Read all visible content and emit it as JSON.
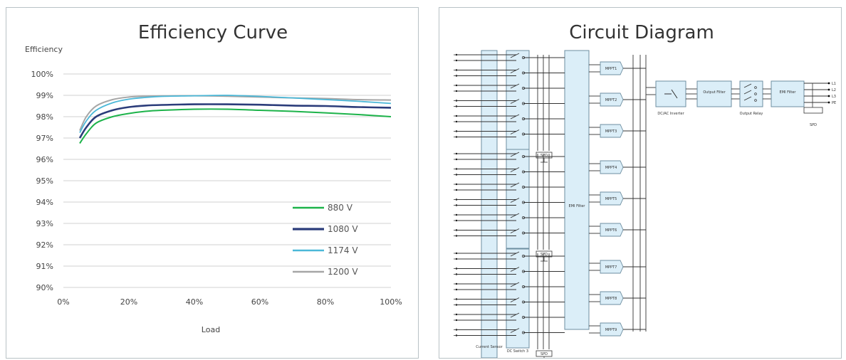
{
  "chart_data": {
    "type": "line",
    "title": "Efficiency Curve",
    "xlabel": "Load",
    "ylabel": "Efficiency",
    "x_ticks": [
      "0%",
      "20%",
      "40%",
      "60%",
      "80%",
      "100%"
    ],
    "y_ticks": [
      "90%",
      "91%",
      "92%",
      "93%",
      "94%",
      "95%",
      "96%",
      "97%",
      "98%",
      "99%",
      "100%"
    ],
    "xlim": [
      0,
      100
    ],
    "ylim": [
      90,
      100
    ],
    "grid": "horizontal",
    "legend_position": "right",
    "x": [
      5,
      7,
      10,
      15,
      20,
      25,
      30,
      40,
      50,
      60,
      70,
      80,
      90,
      100
    ],
    "series": [
      {
        "name": "880 V",
        "color": "#1db34a",
        "values": [
          96.75,
          97.2,
          97.7,
          98.0,
          98.15,
          98.25,
          98.3,
          98.35,
          98.35,
          98.3,
          98.25,
          98.18,
          98.1,
          98.0
        ]
      },
      {
        "name": "1080 V",
        "color": "#2b3c7a",
        "values": [
          97.0,
          97.5,
          98.0,
          98.3,
          98.45,
          98.52,
          98.55,
          98.58,
          98.58,
          98.56,
          98.52,
          98.5,
          98.45,
          98.42
        ]
      },
      {
        "name": "1174 V",
        "color": "#4bb8d8",
        "values": [
          97.25,
          97.8,
          98.3,
          98.65,
          98.82,
          98.9,
          98.95,
          98.98,
          99.0,
          98.95,
          98.88,
          98.8,
          98.72,
          98.62
        ]
      },
      {
        "name": "1200 V",
        "color": "#a6a6a6",
        "values": [
          97.35,
          98.0,
          98.5,
          98.8,
          98.92,
          98.96,
          98.97,
          98.98,
          98.96,
          98.92,
          98.88,
          98.85,
          98.8,
          98.78
        ]
      }
    ]
  },
  "diagram": {
    "title": "Circuit Diagram",
    "dc_switches": [
      "DC Switch 1",
      "DC Switch 2",
      "DC Switch 3"
    ],
    "spd_label": "SPD",
    "emi_filter_label": "EMI Filter",
    "mppt_labels": [
      "MPPT1",
      "MPPT2",
      "MPPT3",
      "MPPT4",
      "MPPT5",
      "MPPT6",
      "MPPT7",
      "MPPT8",
      "MPPT9"
    ],
    "inverter_label": "DC/AC Inverter",
    "output_filter_label": "Output Filter",
    "output_relay_label": "Output Relay",
    "emi_out_label": "EMI Filter",
    "spd_out_label": "SPD",
    "current_sensor_label": "Current Sensor",
    "outputs": [
      "L1",
      "L2",
      "L3",
      "PE"
    ],
    "colors": {
      "box_fill": "#dbeef8",
      "box_stroke": "#6d8ea0",
      "wire": "#333333"
    }
  }
}
